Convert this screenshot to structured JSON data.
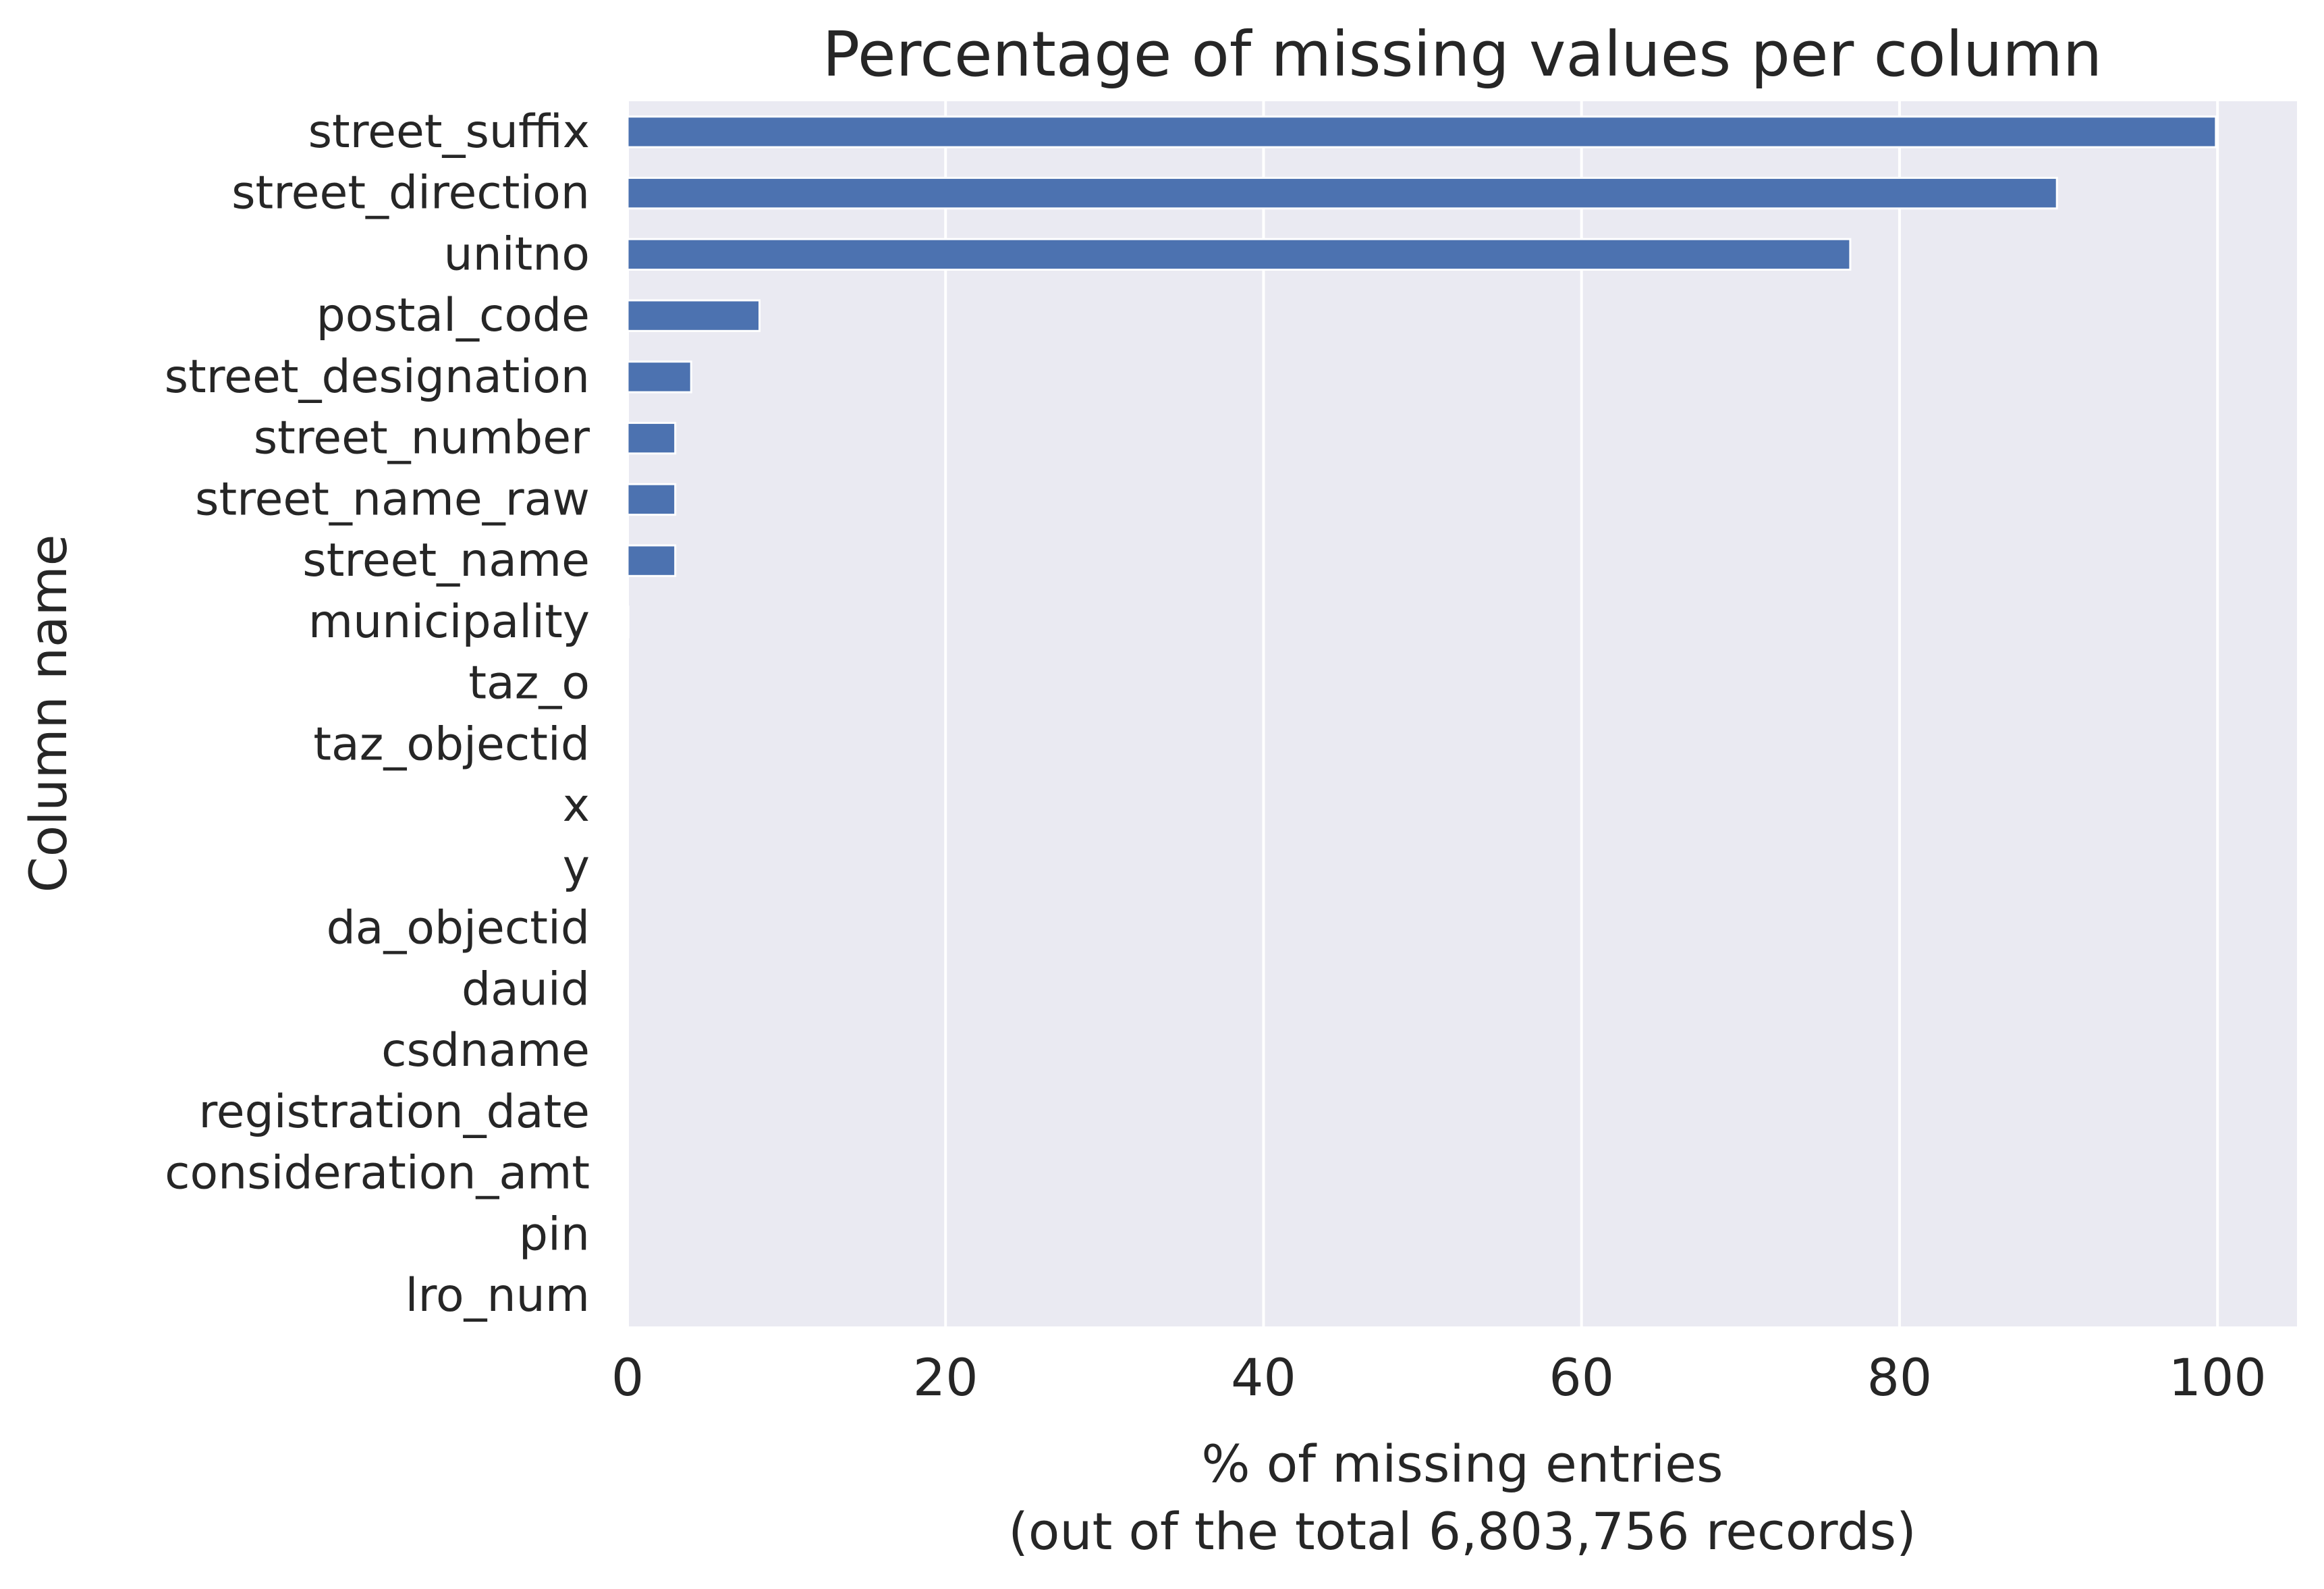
{
  "chart_data": {
    "type": "bar",
    "orientation": "horizontal",
    "title": "Percentage of missing values per column",
    "xlabel_lines": [
      "% of missing entries",
      "(out of the total 6,803,756 records)"
    ],
    "ylabel": "Column name",
    "categories": [
      "street_suffix",
      "street_direction",
      "unitno",
      "postal_code",
      "street_designation",
      "street_number",
      "street_name_raw",
      "street_name",
      "municipality",
      "taz_o",
      "taz_objectid",
      "x",
      "y",
      "da_objectid",
      "dauid",
      "csdname",
      "registration_date",
      "consideration_amt",
      "pin",
      "lro_num"
    ],
    "values": [
      99.9,
      89.9,
      76.9,
      8.3,
      4.0,
      3.0,
      3.0,
      3.0,
      0.05,
      0,
      0,
      0,
      0,
      0,
      0,
      0,
      0,
      0,
      0,
      0
    ],
    "xlim": [
      0,
      105
    ],
    "xticks": [
      0,
      20,
      40,
      60,
      80,
      100
    ],
    "xtick_labels": [
      "0",
      "20",
      "40",
      "60",
      "80",
      "100"
    ],
    "grid": true,
    "colors": {
      "bar": "#4c72b0",
      "plot_background": "#eaeaf2",
      "grid": "#ffffff",
      "text": "#262626"
    }
  }
}
